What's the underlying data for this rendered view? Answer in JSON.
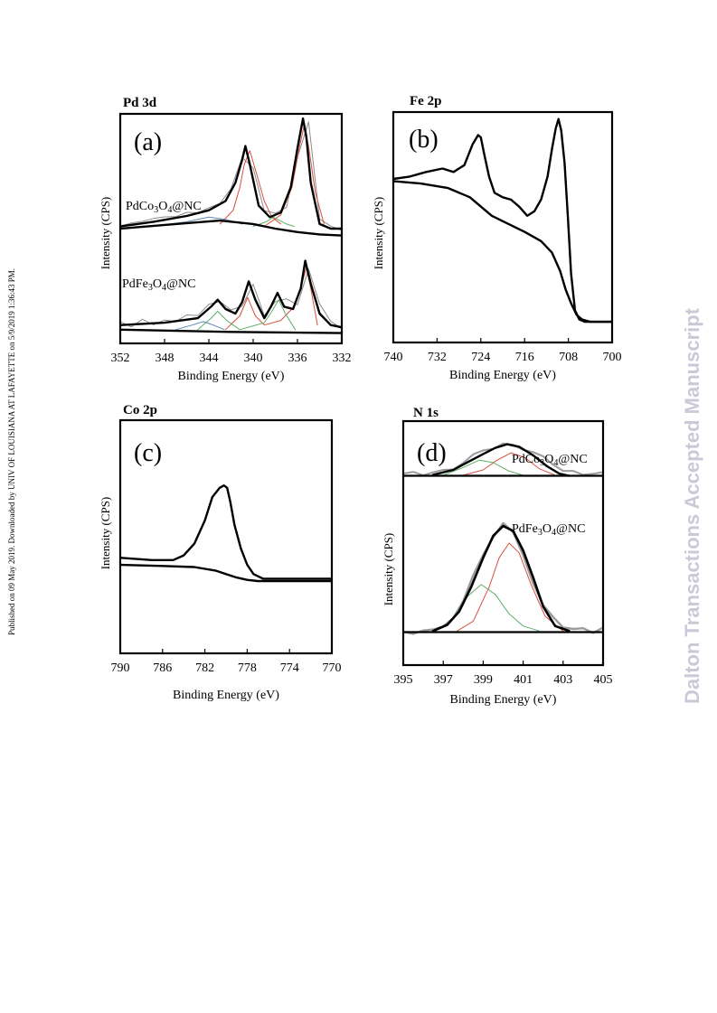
{
  "page": {
    "side_note": "Published on 09 May 2019. Downloaded by UNIV OF LOUISIANA AT LAFAYETTE on 5/9/2019 1:36:43 PM.",
    "watermark": "Dalton Transactions Accepted Manuscript"
  },
  "chart_data": [
    {
      "type": "line",
      "id": "a",
      "title": "Pd 3d",
      "panel_letter": "(a)",
      "xlabel": "Binding  Energy  (eV)",
      "ylabel": "Intensity  (CPS)",
      "xlim": [
        352,
        332
      ],
      "ylim": [
        0,
        100
      ],
      "xticks": [
        "352",
        "348",
        "344",
        "340",
        "336",
        "332"
      ],
      "xtick_values": [
        352,
        348,
        344,
        340,
        336,
        332
      ],
      "annotations": [
        "PdCo3O4@NC",
        "PdFe3O4@NC"
      ],
      "series": [
        {
          "role": "fit",
          "color": "#000000",
          "width": 2.4,
          "x": [
            352,
            349,
            346,
            344,
            342.5,
            341.6,
            341.0,
            340.7,
            340.3,
            339.5,
            338.5,
            337.5,
            336.6,
            336.0,
            335.5,
            335.2,
            334.8,
            334.0,
            333.0,
            332
          ],
          "y": [
            51,
            53,
            55.5,
            58,
            62,
            70,
            80,
            86,
            78,
            60,
            55,
            57,
            68,
            85,
            98,
            90,
            70,
            52,
            50,
            50
          ]
        },
        {
          "role": "background",
          "color": "#000000",
          "width": 2.4,
          "x": [
            352,
            347,
            343,
            340,
            338,
            336,
            334,
            332
          ],
          "y": [
            50,
            52,
            53.5,
            52,
            50,
            48.5,
            47.5,
            47
          ]
        },
        {
          "role": "fit",
          "color": "#000000",
          "width": 2.4,
          "x": [
            352,
            348,
            345,
            343.8,
            343.2,
            342.5,
            341.6,
            341.0,
            340.4,
            339.8,
            339.0,
            338.4,
            337.8,
            337.2,
            336.4,
            335.7,
            335.3,
            334.8,
            334.0,
            333.0,
            332
          ],
          "y": [
            8,
            9,
            11,
            16,
            19,
            15,
            13,
            18,
            27,
            19,
            11,
            16,
            22,
            16,
            15,
            24,
            36,
            26,
            13,
            8,
            7
          ]
        },
        {
          "role": "background",
          "color": "#000000",
          "width": 2.4,
          "x": [
            352,
            342,
            332
          ],
          "y": [
            6,
            5,
            4.5
          ]
        },
        {
          "role": "component",
          "color": "#d94f3d",
          "width": 1,
          "x": [
            343,
            341.8,
            341.2,
            340.8,
            340.3,
            339.7,
            339.0,
            338.3,
            337.5
          ],
          "y": [
            52,
            58,
            68,
            78,
            84,
            74,
            62,
            55,
            52
          ]
        },
        {
          "role": "component",
          "color": "#d94f3d",
          "width": 1,
          "x": [
            339.0,
            337.5,
            336.5,
            335.8,
            335.4,
            335.0,
            334.4,
            333.6
          ],
          "y": [
            51,
            56,
            68,
            86,
            95,
            86,
            66,
            52
          ]
        },
        {
          "role": "component",
          "color": "#5fae6a",
          "width": 1,
          "x": [
            340.0,
            338.8,
            338.2,
            337.6,
            337.0,
            336.3
          ],
          "y": [
            51,
            53,
            55,
            53.5,
            52,
            51
          ]
        },
        {
          "role": "component",
          "color": "#5b88b5",
          "width": 1,
          "x": [
            349,
            346,
            344,
            342.5,
            341
          ],
          "y": [
            51,
            53,
            55,
            54,
            52
          ]
        },
        {
          "role": "component",
          "color": "#d94f3d",
          "width": 1,
          "x": [
            342.5,
            341.2,
            340.5,
            339.8,
            339.0,
            337.5,
            336.3,
            335.6,
            335.2,
            334.8,
            334.2
          ],
          "y": [
            6,
            12,
            20,
            12,
            8,
            10,
            16,
            26,
            33,
            24,
            8
          ]
        },
        {
          "role": "component",
          "color": "#5fae6a",
          "width": 1,
          "x": [
            345,
            343.8,
            343.2,
            342.4,
            341.2,
            339.0,
            338.3,
            337.7,
            337.1,
            336.2
          ],
          "y": [
            6,
            11,
            14,
            10,
            6,
            9,
            14,
            19,
            13,
            6
          ]
        },
        {
          "role": "component",
          "color": "#5b88b5",
          "width": 1,
          "x": [
            347,
            345.5,
            344.5,
            343.6,
            342.6
          ],
          "y": [
            6,
            8,
            9.5,
            8,
            6
          ]
        },
        {
          "role": "raw",
          "color": "#8a8a8a",
          "width": 1,
          "x": [
            352,
            351,
            350,
            349,
            348,
            347,
            346,
            345,
            344,
            343,
            342,
            341,
            340,
            339,
            338,
            337,
            336,
            335,
            334,
            333,
            332
          ],
          "y": [
            51,
            52.5,
            53.2,
            54.4,
            55.1,
            55.2,
            57.1,
            56.9,
            59.1,
            61,
            67.4,
            81,
            76.4,
            57.8,
            56.7,
            59.2,
            81.1,
            96.5,
            54.2,
            51.1,
            49.2
          ]
        },
        {
          "role": "raw",
          "color": "#8a8a8a",
          "width": 1,
          "x": [
            352,
            351,
            350,
            349,
            348,
            347,
            346,
            345,
            344,
            343,
            342,
            341,
            340,
            339,
            338,
            337,
            336,
            335,
            334,
            333,
            332
          ],
          "y": [
            9.5,
            7.2,
            10.5,
            8.1,
            10.2,
            9.5,
            12.4,
            12.1,
            17.1,
            18.2,
            14.6,
            16.2,
            25.8,
            12.1,
            18.2,
            19.4,
            16.8,
            32.4,
            17.2,
            9.6,
            6.4
          ]
        }
      ]
    },
    {
      "type": "line",
      "id": "b",
      "title": "Fe 2p",
      "panel_letter": "(b)",
      "xlabel": "Binding  Energy  (eV)",
      "ylabel": "Intensity  (CPS)",
      "xlim": [
        740,
        700
      ],
      "ylim": [
        0,
        100
      ],
      "xticks": [
        "740",
        "732",
        "724",
        "716",
        "708",
        "700"
      ],
      "xtick_values": [
        740,
        732,
        724,
        716,
        708,
        700
      ],
      "series": [
        {
          "role": "spectrum",
          "color": "#000000",
          "width": 2.4,
          "x": [
            740,
            737,
            734,
            731,
            729,
            727,
            725.5,
            724.5,
            724,
            723.4,
            722.5,
            721.5,
            720,
            718.5,
            717,
            715.5,
            714.2,
            713,
            711.8,
            711,
            710.3,
            709.8,
            709.3,
            708.7,
            708.1,
            707.5,
            706.8,
            706,
            705,
            703,
            700
          ],
          "y": [
            71,
            72,
            74,
            75.5,
            74,
            77,
            86,
            90,
            89,
            82,
            72,
            65,
            63,
            62,
            59,
            55,
            57,
            62,
            72,
            84,
            93,
            97,
            92,
            78,
            55,
            30,
            14,
            10,
            9,
            9,
            9
          ]
        },
        {
          "role": "background",
          "color": "#000000",
          "width": 2.4,
          "x": [
            740,
            735,
            730,
            726,
            722,
            719,
            716,
            713,
            711,
            709.5,
            708.5,
            707.5,
            706.5,
            705.5,
            704,
            700
          ],
          "y": [
            70,
            69,
            67,
            63,
            55,
            51.5,
            48,
            44,
            39,
            31,
            23,
            17,
            12,
            10,
            9,
            9
          ]
        }
      ]
    },
    {
      "type": "line",
      "id": "c",
      "title": "Co 2p",
      "panel_letter": "(c)",
      "xlabel": "Binding  Energy  (eV)",
      "ylabel": "Intensity  (CPS)",
      "xlim": [
        790,
        770
      ],
      "ylim": [
        0,
        100
      ],
      "xticks": [
        "790",
        "786",
        "782",
        "778",
        "774",
        "770"
      ],
      "xtick_values": [
        790,
        786,
        782,
        778,
        774,
        770
      ],
      "series": [
        {
          "role": "spectrum",
          "color": "#000000",
          "width": 2.4,
          "x": [
            790,
            787,
            785,
            784,
            783,
            782,
            781.3,
            780.6,
            780.2,
            779.9,
            779.6,
            779.2,
            778.6,
            778.0,
            777.4,
            776.5,
            775,
            772,
            770
          ],
          "y": [
            41,
            40,
            40,
            42,
            47,
            57,
            67,
            71,
            72,
            71,
            65,
            55,
            45,
            38,
            34,
            32,
            32,
            32,
            32
          ]
        },
        {
          "role": "background",
          "color": "#000000",
          "width": 2.4,
          "x": [
            790,
            786,
            783,
            781,
            780,
            779,
            778,
            777,
            775,
            772,
            770
          ],
          "y": [
            38,
            37.5,
            37,
            35.5,
            34,
            32.5,
            31.5,
            31,
            31,
            31,
            31
          ]
        }
      ]
    },
    {
      "type": "line",
      "id": "d",
      "title": "N 1s",
      "panel_letter": "(d)",
      "xlabel": "Binding  Energy  (eV)",
      "ylabel": "Intensity  (CPS)",
      "xlim": [
        395,
        405
      ],
      "ylim": [
        0,
        100
      ],
      "xticks": [
        "395",
        "397",
        "399",
        "401",
        "403",
        "405"
      ],
      "xtick_values": [
        395,
        397,
        399,
        401,
        403,
        405
      ],
      "annotations": [
        "PdCo3O4@NC",
        "PdFe3O4@NC"
      ],
      "series": [
        {
          "role": "raw",
          "color": "#9a9a9a",
          "width": 2,
          "x": [
            395,
            395.5,
            396,
            396.5,
            397,
            397.5,
            398,
            398.5,
            399,
            399.5,
            400,
            400.5,
            401,
            401.5,
            402,
            402.5,
            403,
            403.5,
            404,
            404.5,
            405
          ],
          "y": [
            78.5,
            79.2,
            77.8,
            79,
            80,
            80.2,
            82.8,
            86.4,
            88,
            88.6,
            90.8,
            90.3,
            88.2,
            87.3,
            85.6,
            82.1,
            79.6,
            79.6,
            78,
            78.4,
            79.1
          ]
        },
        {
          "role": "background",
          "color": "#000000",
          "width": 2.2,
          "x": [
            395,
            405
          ],
          "y": [
            77.6,
            77.6
          ]
        },
        {
          "role": "fit",
          "color": "#000000",
          "width": 2.4,
          "x": [
            396.5,
            397.5,
            398.3,
            399.0,
            399.6,
            400.2,
            400.8,
            401.5,
            402.2,
            402.8,
            403.3
          ],
          "y": [
            78,
            80,
            83.5,
            86.5,
            89,
            90.5,
            89.5,
            86,
            81.5,
            78.5,
            77.6
          ]
        },
        {
          "role": "component",
          "color": "#d94f3d",
          "width": 1,
          "x": [
            398,
            399,
            399.7,
            400.4,
            401.1,
            401.8,
            402.6
          ],
          "y": [
            77.8,
            80,
            84,
            87,
            85,
            80.5,
            77.8
          ]
        },
        {
          "role": "component",
          "color": "#5fae6a",
          "width": 1,
          "x": [
            397,
            398,
            398.8,
            399.5,
            400.3,
            401.0
          ],
          "y": [
            77.8,
            81,
            84,
            83,
            79.5,
            77.8
          ]
        },
        {
          "role": "raw",
          "color": "#9a9a9a",
          "width": 2.4,
          "x": [
            395,
            395.5,
            396,
            396.5,
            397,
            397.5,
            398,
            398.5,
            399,
            399.5,
            400,
            400.5,
            401,
            401.5,
            402,
            402.5,
            403,
            403.5,
            404,
            404.5,
            405
          ],
          "y": [
            13.7,
            12.8,
            14.2,
            14.6,
            15.8,
            19.3,
            26.2,
            36.8,
            45.2,
            52.4,
            58.2,
            54.5,
            45.1,
            33.6,
            24.6,
            19.7,
            15.4,
            14.8,
            15.1,
            13.2,
            15.4
          ]
        },
        {
          "role": "background",
          "color": "#000000",
          "width": 2.2,
          "x": [
            395,
            400,
            405
          ],
          "y": [
            13.5,
            13.5,
            13.5
          ]
        },
        {
          "role": "fit",
          "color": "#000000",
          "width": 2.6,
          "x": [
            396.5,
            397.2,
            397.8,
            398.4,
            399.0,
            399.5,
            400.0,
            400.5,
            401.0,
            401.5,
            402.0,
            402.6,
            403.3
          ],
          "y": [
            14,
            16.5,
            22,
            32,
            44,
            53,
            57,
            55,
            47,
            36,
            24,
            16,
            14
          ]
        },
        {
          "role": "component",
          "color": "#d94f3d",
          "width": 1,
          "x": [
            397.7,
            398.5,
            399.3,
            399.8,
            400.3,
            400.8,
            401.4,
            402.1,
            403.0
          ],
          "y": [
            14,
            18,
            32,
            44,
            50,
            46,
            33,
            20,
            14
          ]
        },
        {
          "role": "component",
          "color": "#5fae6a",
          "width": 1,
          "x": [
            396.6,
            397.4,
            398.2,
            398.9,
            399.6,
            400.3,
            401.0,
            401.8
          ],
          "y": [
            14,
            18,
            28,
            33,
            29,
            21,
            16,
            14
          ]
        }
      ]
    }
  ]
}
